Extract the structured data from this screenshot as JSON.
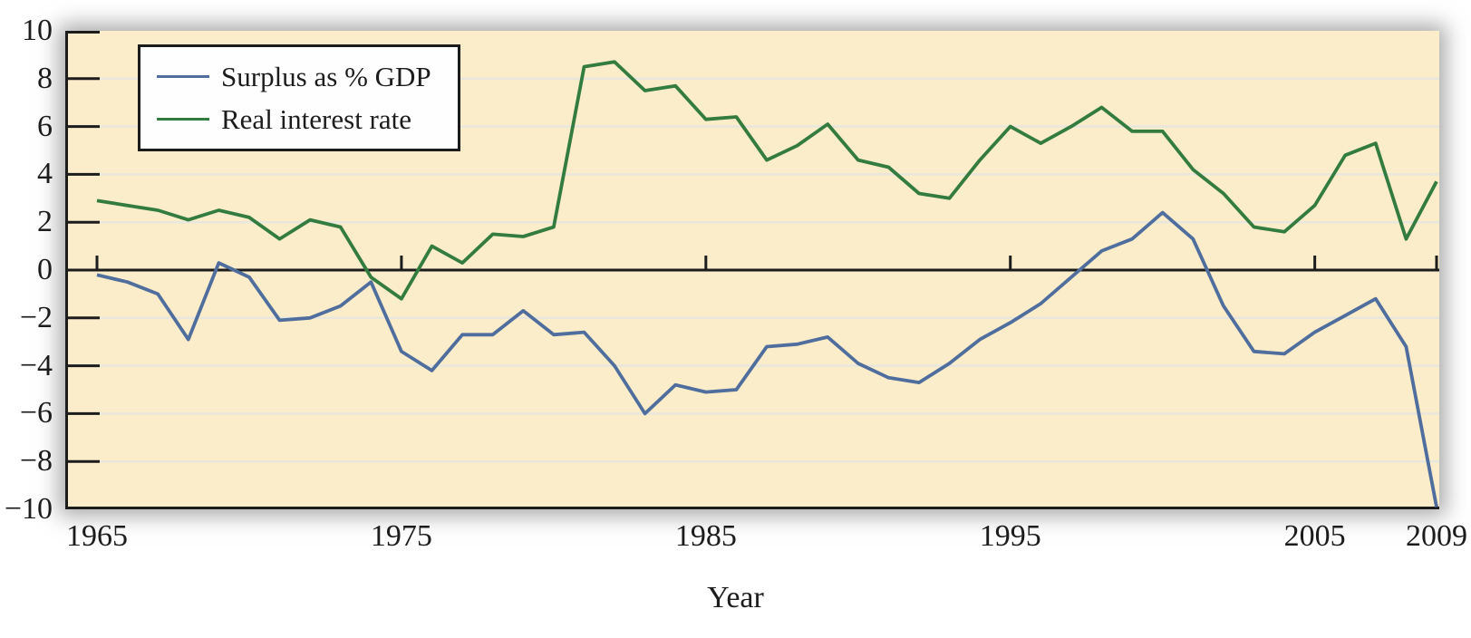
{
  "figure": {
    "x_axis_title": "Year",
    "background_color": "#FBEDC9",
    "outer_background": "#ffffff",
    "grid_color": "#E9E7DD",
    "axis_color": "#1c1c1c",
    "shadow_color": "rgba(110,110,110,0.6)",
    "legend": {
      "items": [
        {
          "label": "Surplus as % GDP",
          "color": "#4F6D9D"
        },
        {
          "label": "Real interest rate",
          "color": "#337B3F"
        }
      ]
    }
  },
  "chart_data": {
    "type": "line",
    "title": "",
    "xlabel": "Year",
    "ylabel": "",
    "xlim": [
      1965,
      2009
    ],
    "ylim": [
      -10,
      10
    ],
    "grid": true,
    "legend_position": "top-left",
    "x_ticks": [
      1965,
      1975,
      1985,
      1995,
      2005,
      2009
    ],
    "x_tick_labels": [
      "1965",
      "1975",
      "1985",
      "1995",
      "2005",
      "2009"
    ],
    "y_ticks": [
      10,
      8,
      6,
      4,
      2,
      0,
      -2,
      -4,
      -6,
      -8,
      -10
    ],
    "y_tick_labels": [
      "10",
      "8",
      "6",
      "4",
      "2",
      "0",
      "−2",
      "−4",
      "−6",
      "−8",
      "−10"
    ],
    "x": [
      1965,
      1966,
      1967,
      1968,
      1969,
      1970,
      1971,
      1972,
      1973,
      1974,
      1975,
      1976,
      1977,
      1978,
      1979,
      1980,
      1981,
      1982,
      1983,
      1984,
      1985,
      1986,
      1987,
      1988,
      1989,
      1990,
      1991,
      1992,
      1993,
      1994,
      1995,
      1996,
      1997,
      1998,
      1999,
      2000,
      2001,
      2002,
      2003,
      2004,
      2005,
      2006,
      2007,
      2008,
      2009
    ],
    "series": [
      {
        "name": "Surplus as % GDP",
        "color": "#4F6D9D",
        "values": [
          -0.2,
          -0.5,
          -1.0,
          -2.9,
          0.3,
          -0.3,
          -2.1,
          -2.0,
          -1.5,
          -0.5,
          -3.4,
          -4.2,
          -2.7,
          -2.7,
          -1.7,
          -2.7,
          -2.6,
          -4.0,
          -6.0,
          -4.8,
          -5.1,
          -5.0,
          -3.2,
          -3.1,
          -2.8,
          -3.9,
          -4.5,
          -4.7,
          -3.9,
          -2.9,
          -2.2,
          -1.4,
          -0.3,
          0.8,
          1.3,
          2.4,
          1.3,
          -1.5,
          -3.4,
          -3.5,
          -2.6,
          -1.9,
          -1.2,
          -3.2,
          -9.9
        ]
      },
      {
        "name": "Real interest rate",
        "color": "#337B3F",
        "values": [
          2.9,
          2.7,
          2.5,
          2.1,
          2.5,
          2.2,
          1.3,
          2.1,
          1.8,
          -0.3,
          -1.2,
          1.0,
          0.3,
          1.5,
          1.4,
          1.8,
          8.5,
          8.7,
          7.5,
          7.7,
          6.3,
          6.4,
          4.6,
          5.2,
          6.1,
          4.6,
          4.3,
          3.2,
          3.0,
          4.6,
          6.0,
          5.3,
          6.0,
          6.8,
          5.8,
          5.8,
          4.2,
          3.2,
          1.8,
          1.6,
          2.7,
          4.8,
          5.3,
          1.3,
          3.7
        ]
      }
    ]
  }
}
